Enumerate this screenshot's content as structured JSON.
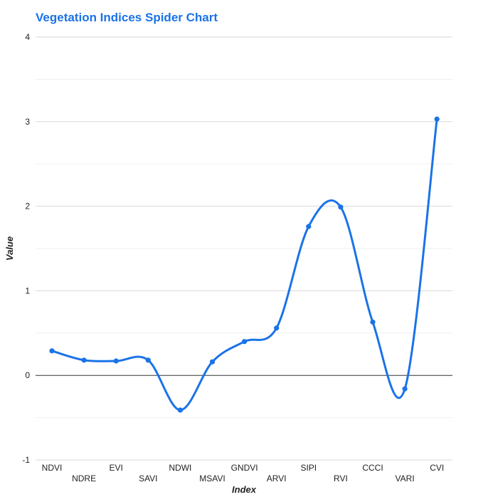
{
  "chart_data": {
    "type": "line",
    "title": "Vegetation Indices Spider Chart",
    "xlabel": "Index",
    "ylabel": "Value",
    "ylim": [
      -1,
      4
    ],
    "yticks": [
      "-1",
      "0",
      "1",
      "2",
      "3",
      "4"
    ],
    "categories": [
      "NDVI",
      "NDRE",
      "EVI",
      "SAVI",
      "NDWI",
      "MSAVI",
      "GNDVI",
      "ARVI",
      "SIPI",
      "RVI",
      "CCCI",
      "VARI",
      "CVI"
    ],
    "values": [
      0.29,
      0.18,
      0.17,
      0.18,
      -0.41,
      0.16,
      0.4,
      0.56,
      1.76,
      1.99,
      0.63,
      -0.16,
      3.03
    ],
    "grid": true,
    "smooth": true,
    "line_color": "#1a73e8",
    "title_color": "#1a73e8"
  }
}
